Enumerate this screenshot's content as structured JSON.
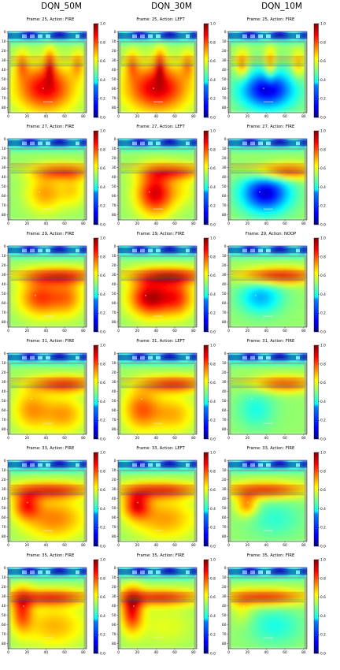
{
  "columns": [
    "DQN_50M",
    "DQN_30M",
    "DQN_10M"
  ],
  "chart_data": {
    "type": "heatmap",
    "x_ticks": [
      "0",
      "20",
      "40",
      "60",
      "80"
    ],
    "y_ticks": [
      "0",
      "10",
      "20",
      "30",
      "40",
      "50",
      "60",
      "70",
      "80"
    ],
    "colorbar_ticks": [
      "0.0",
      "0.2",
      "0.4",
      "0.6",
      "0.8",
      "1.0"
    ],
    "colormap": "jet",
    "value_range": [
      0.0,
      1.0
    ],
    "panels": [
      [
        {
          "title": "Frame: 25, Action: FIRE",
          "blobs": [
            [
              45,
              35,
              0.75,
              4,
              12
            ],
            [
              15,
              35,
              0.7,
              5,
              10
            ],
            [
              75,
              35,
              0.7,
              5,
              10
            ],
            [
              40,
              60,
              0.9,
              22,
              18
            ]
          ]
        },
        {
          "title": "Frame: 25, Action: LEFT",
          "blobs": [
            [
              45,
              35,
              0.75,
              4,
              12
            ],
            [
              15,
              35,
              0.7,
              5,
              10
            ],
            [
              75,
              35,
              0.7,
              5,
              10
            ],
            [
              42,
              60,
              0.92,
              24,
              18
            ]
          ]
        },
        {
          "title": "Frame: 25, Action: FIRE",
          "blobs": [
            [
              45,
              35,
              0.75,
              4,
              12
            ],
            [
              15,
              35,
              0.75,
              5,
              10
            ],
            [
              75,
              35,
              0.7,
              5,
              10
            ],
            [
              42,
              62,
              0.08,
              20,
              14
            ]
          ]
        }
      ],
      [
        {
          "title": "Frame: 27, Action: FIRE",
          "blobs": [
            [
              60,
              35,
              0.8,
              24,
              6
            ],
            [
              40,
              58,
              0.72,
              14,
              14
            ],
            [
              70,
              55,
              0.65,
              10,
              12
            ]
          ]
        },
        {
          "title": "Frame: 27, Action: LEFT",
          "blobs": [
            [
              60,
              35,
              0.8,
              24,
              6
            ],
            [
              40,
              58,
              0.92,
              14,
              16
            ],
            [
              70,
              55,
              0.6,
              10,
              12
            ]
          ]
        },
        {
          "title": "Frame: 27, Action: FIRE",
          "blobs": [
            [
              60,
              35,
              0.85,
              24,
              6
            ],
            [
              40,
              58,
              0.08,
              18,
              14
            ]
          ]
        }
      ],
      [
        {
          "title": "Frame: 29, Action: FIRE",
          "blobs": [
            [
              55,
              32,
              0.85,
              28,
              6
            ],
            [
              35,
              55,
              0.82,
              16,
              14
            ],
            [
              65,
              55,
              0.72,
              12,
              14
            ]
          ]
        },
        {
          "title": "Frame: 29, Action: FIRE",
          "blobs": [
            [
              55,
              32,
              0.88,
              28,
              6
            ],
            [
              35,
              55,
              0.95,
              16,
              14
            ],
            [
              65,
              55,
              0.78,
              12,
              14
            ]
          ]
        },
        {
          "title": "Frame: 29, Action: NOOP",
          "blobs": [
            [
              55,
              32,
              0.88,
              28,
              6
            ],
            [
              35,
              55,
              0.3,
              16,
              12
            ]
          ]
        }
      ],
      [
        {
          "title": "Frame: 31, Action: FIRE",
          "blobs": [
            [
              60,
              33,
              0.85,
              24,
              6
            ],
            [
              25,
              60,
              0.72,
              14,
              16
            ],
            [
              60,
              65,
              0.72,
              16,
              14
            ]
          ]
        },
        {
          "title": "Frame: 31, Action: LEFT",
          "blobs": [
            [
              60,
              33,
              0.85,
              24,
              6
            ],
            [
              25,
              60,
              0.78,
              14,
              16
            ],
            [
              60,
              65,
              0.7,
              16,
              14
            ]
          ]
        },
        {
          "title": "Frame: 31, Action: FIRE",
          "blobs": [
            [
              60,
              33,
              0.8,
              24,
              6
            ],
            [
              30,
              60,
              0.4,
              14,
              14
            ]
          ]
        }
      ],
      [
        {
          "title": "Frame: 33, Action: FIRE",
          "blobs": [
            [
              45,
              32,
              0.85,
              30,
              6
            ],
            [
              20,
              48,
              0.8,
              10,
              10
            ],
            [
              50,
              62,
              0.75,
              24,
              16
            ]
          ]
        },
        {
          "title": "Frame: 33, Action: LEFT",
          "blobs": [
            [
              45,
              32,
              0.85,
              30,
              6
            ],
            [
              20,
              48,
              0.85,
              10,
              10
            ],
            [
              50,
              62,
              0.72,
              24,
              16
            ]
          ]
        },
        {
          "title": "Frame: 33, Action: FIRE",
          "blobs": [
            [
              40,
              32,
              0.85,
              30,
              6
            ],
            [
              20,
              48,
              0.75,
              8,
              8
            ],
            [
              50,
              62,
              0.42,
              20,
              14
            ]
          ]
        }
      ],
      [
        {
          "title": "Frame: 35, Action: FIRE",
          "blobs": [
            [
              45,
              32,
              0.85,
              30,
              6
            ],
            [
              15,
              45,
              0.8,
              8,
              16
            ],
            [
              50,
              62,
              0.7,
              24,
              16
            ]
          ]
        },
        {
          "title": "Frame: 35, Action: FIRE",
          "blobs": [
            [
              45,
              32,
              0.85,
              30,
              6
            ],
            [
              15,
              45,
              0.88,
              8,
              16
            ],
            [
              50,
              62,
              0.6,
              24,
              16
            ]
          ]
        },
        {
          "title": "Frame: 35, Action: FIRE",
          "blobs": [
            [
              40,
              32,
              0.85,
              30,
              6
            ],
            [
              15,
              45,
              0.6,
              8,
              12
            ],
            [
              50,
              62,
              0.4,
              20,
              14
            ]
          ]
        }
      ]
    ]
  }
}
